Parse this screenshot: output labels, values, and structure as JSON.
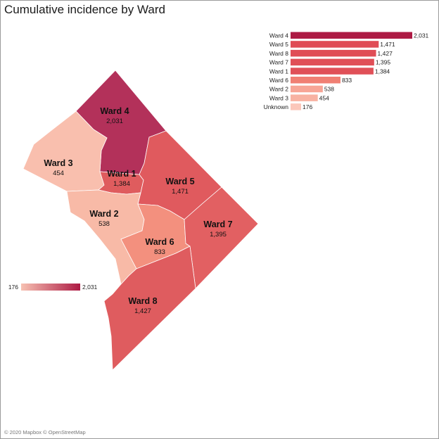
{
  "title": "Cumulative incidence by Ward",
  "attribution": "© 2020 Mapbox © OpenStreetMap",
  "color_scale": {
    "min": 176,
    "max": 2031,
    "min_color": "#f7c1b2",
    "max_color": "#ad1a44"
  },
  "legend": {
    "min_label": "176",
    "max_label": "2,031"
  },
  "map": {
    "wards": [
      {
        "id": "ward-4",
        "name": "Ward 4",
        "value": 2031,
        "value_label": "2,031",
        "color": "#b3315a"
      },
      {
        "id": "ward-5",
        "name": "Ward 5",
        "value": 1471,
        "value_label": "1,471",
        "color": "#e05a5e"
      },
      {
        "id": "ward-8",
        "name": "Ward 8",
        "value": 1427,
        "value_label": "1,427",
        "color": "#df5c5f"
      },
      {
        "id": "ward-7",
        "name": "Ward 7",
        "value": 1395,
        "value_label": "1,395",
        "color": "#e26062"
      },
      {
        "id": "ward-1",
        "name": "Ward 1",
        "value": 1384,
        "value_label": "1,384",
        "color": "#df5c5e"
      },
      {
        "id": "ward-6",
        "name": "Ward 6",
        "value": 833,
        "value_label": "833",
        "color": "#f3907e"
      },
      {
        "id": "ward-2",
        "name": "Ward 2",
        "value": 538,
        "value_label": "538",
        "color": "#f8baa7"
      },
      {
        "id": "ward-3",
        "name": "Ward 3",
        "value": 454,
        "value_label": "454",
        "color": "#f9bfae"
      }
    ]
  },
  "chart_data": {
    "type": "bar",
    "orientation": "horizontal",
    "categories": [
      "Ward 4",
      "Ward 5",
      "Ward 8",
      "Ward 7",
      "Ward 1",
      "Ward 6",
      "Ward 2",
      "Ward 3",
      "Unknown"
    ],
    "values": [
      2031,
      1471,
      1427,
      1395,
      1384,
      833,
      538,
      454,
      176
    ],
    "value_labels": [
      "2,031",
      "1,471",
      "1,427",
      "1,395",
      "1,384",
      "833",
      "538",
      "454",
      "176"
    ],
    "colors": [
      "#ad1a44",
      "#e04b55",
      "#e04d56",
      "#e04f57",
      "#e05058",
      "#f07f73",
      "#f7a596",
      "#f8b2a2",
      "#fbc7ba"
    ],
    "xlim": [
      0,
      2031
    ]
  }
}
